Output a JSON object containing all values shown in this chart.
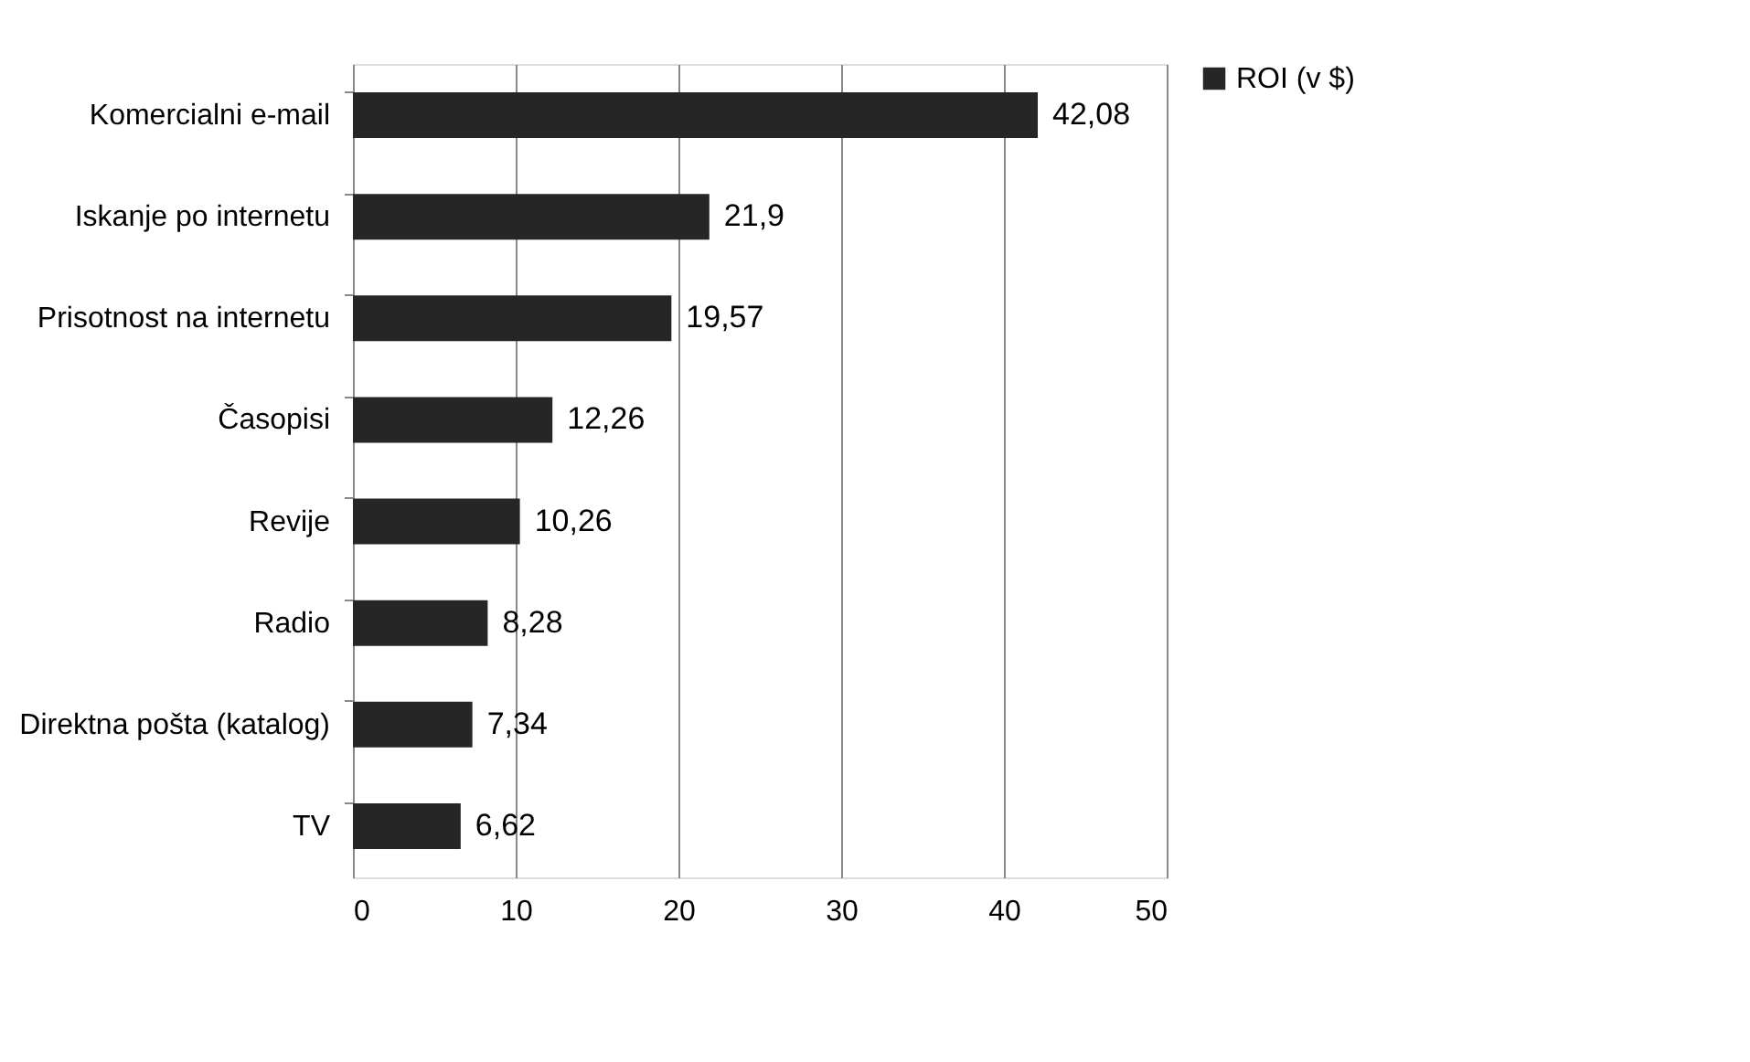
{
  "chart_data": {
    "type": "bar",
    "orientation": "horizontal",
    "categories": [
      "Komercialni e-mail",
      "Iskanje po internetu",
      "Prisotnost na internetu",
      "Časopisi",
      "Revije",
      "Radio",
      "Direktna pošta (katalog)",
      "TV"
    ],
    "series": [
      {
        "name": "ROI (v $)",
        "color": "#262626",
        "values": [
          42.08,
          21.9,
          19.57,
          12.26,
          10.26,
          8.28,
          7.34,
          6.62
        ]
      }
    ],
    "value_labels": [
      "42,08",
      "21,9",
      "19,57",
      "12,26",
      "10,26",
      "8,28",
      "7,34",
      "6,62"
    ],
    "xlim": [
      0,
      50
    ],
    "xticks": [
      0,
      10,
      20,
      30,
      40,
      50
    ],
    "grid": "x",
    "legend": "right"
  }
}
